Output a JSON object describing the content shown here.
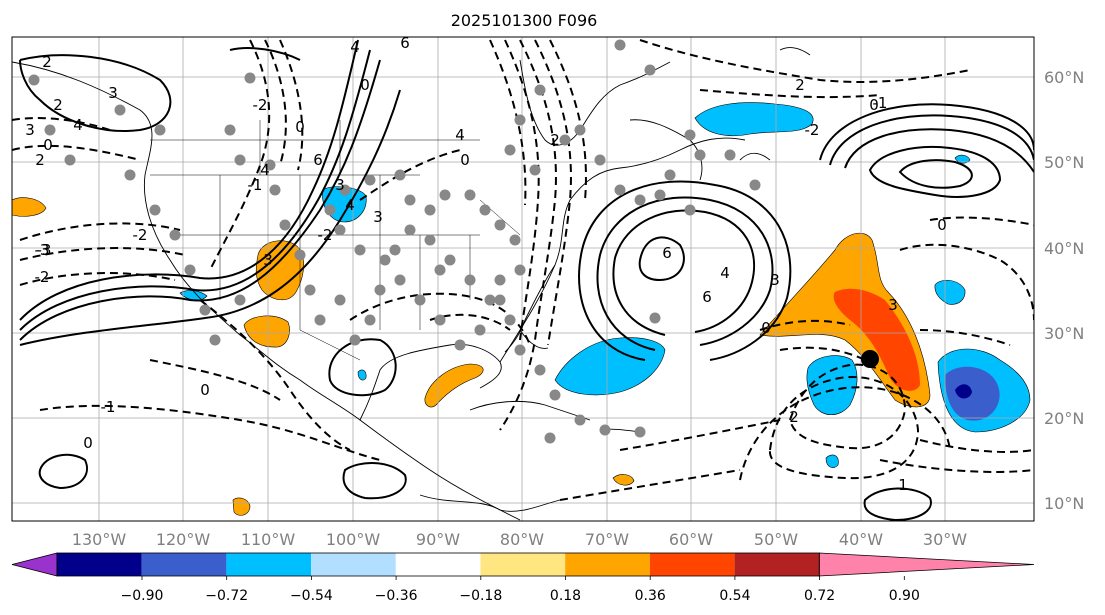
{
  "title": "2025101300 F096",
  "lat_labels": [
    "60°N",
    "50°N",
    "40°N",
    "30°N",
    "20°N",
    "10°N"
  ],
  "lon_labels": [
    "130°W",
    "120°W",
    "110°W",
    "100°W",
    "90°W",
    "80°W",
    "70°W",
    "60°W",
    "50°W",
    "40°W",
    "30°W"
  ],
  "colorbar": {
    "tick_labels": [
      "−0.90",
      "−0.72",
      "−0.54",
      "−0.36",
      "−0.18",
      "0.18",
      "0.36",
      "0.54",
      "0.72",
      "0.90"
    ],
    "colors": {
      "under": "#9a32cd",
      "bins": [
        "#00008b",
        "#3a5fcd",
        "#00bfff",
        "#b2dfff",
        "#ffffff",
        "#ffe680",
        "#ffa500",
        "#ff4500",
        "#b22222"
      ],
      "over": "#ff82ab"
    }
  },
  "contour_labels": [
    "2",
    "3",
    "4",
    "2",
    "0",
    "3",
    "2",
    "-3",
    "-2",
    "-1",
    "0",
    "-2",
    "4",
    "0",
    "6",
    "4",
    "-2",
    "4",
    "-1",
    "3",
    "0",
    "6",
    "3",
    "4",
    "3",
    "0",
    "-2",
    "2",
    "6",
    "4",
    "6",
    "3",
    "0",
    "3",
    "0",
    "2",
    "-2",
    "-1",
    "1",
    "0",
    "2",
    "0",
    "-3"
  ],
  "colors": {
    "orange": "#ffa500",
    "red_orange": "#ff4500",
    "deep_sky": "#00bfff",
    "royal_blue": "#3a5fcd",
    "navy": "#00008b",
    "station_marker": "#888888",
    "storm_marker": "#000000",
    "grid": "#aaaaaa"
  }
}
